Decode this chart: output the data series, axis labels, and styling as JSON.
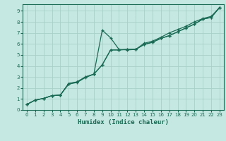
{
  "xlabel": "Humidex (Indice chaleur)",
  "ylabel": "",
  "bg_color": "#c5e8e2",
  "grid_color": "#a8cfc8",
  "line_color": "#1a6b55",
  "xlim": [
    -0.5,
    23.5
  ],
  "ylim": [
    0,
    9.6
  ],
  "xticks": [
    0,
    1,
    2,
    3,
    4,
    5,
    6,
    7,
    8,
    9,
    10,
    11,
    12,
    13,
    14,
    15,
    16,
    17,
    18,
    19,
    20,
    21,
    22,
    23
  ],
  "yticks": [
    0,
    1,
    2,
    3,
    4,
    5,
    6,
    7,
    8,
    9
  ],
  "series1_x": [
    0,
    1,
    2,
    3,
    4,
    5,
    6,
    7,
    8,
    9,
    10,
    11,
    12,
    13,
    14,
    15,
    16,
    17,
    18,
    19,
    20,
    21,
    22,
    23
  ],
  "series1_y": [
    0.5,
    0.9,
    1.05,
    1.3,
    1.35,
    2.4,
    2.55,
    3.0,
    3.25,
    4.1,
    5.45,
    5.45,
    5.5,
    5.5,
    5.95,
    6.15,
    6.5,
    6.75,
    7.1,
    7.45,
    7.8,
    8.25,
    8.4,
    9.3
  ],
  "series2_x": [
    0,
    1,
    2,
    3,
    4,
    5,
    6,
    7,
    8,
    9,
    10,
    11,
    12,
    13,
    14,
    15,
    16,
    17,
    18,
    19,
    20,
    21,
    22,
    23
  ],
  "series2_y": [
    0.5,
    0.9,
    1.05,
    1.3,
    1.35,
    2.35,
    2.5,
    2.95,
    3.25,
    7.25,
    6.55,
    5.5,
    5.45,
    5.5,
    5.95,
    6.15,
    6.5,
    6.75,
    7.1,
    7.45,
    7.8,
    8.25,
    8.4,
    9.3
  ],
  "series3_x": [
    0,
    1,
    2,
    3,
    4,
    5,
    6,
    7,
    8,
    9,
    10,
    11,
    12,
    13,
    14,
    15,
    16,
    17,
    18,
    19,
    20,
    21,
    22,
    23
  ],
  "series3_y": [
    0.5,
    0.9,
    1.05,
    1.3,
    1.35,
    2.4,
    2.55,
    3.0,
    3.25,
    4.1,
    5.45,
    5.45,
    5.5,
    5.5,
    6.05,
    6.25,
    6.6,
    7.0,
    7.3,
    7.6,
    8.0,
    8.3,
    8.5,
    9.3
  ]
}
